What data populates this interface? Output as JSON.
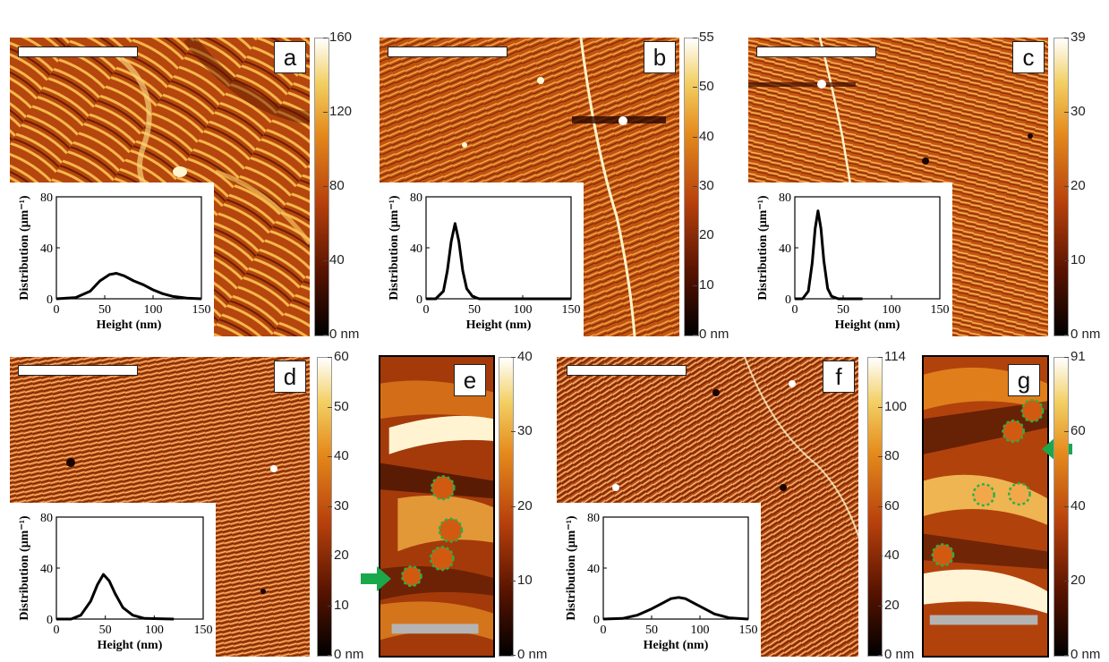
{
  "colors": {
    "dark": "#1a0700",
    "mid": "#b2410b",
    "light": "#ffffff",
    "orange": "#d96a12",
    "yellow": "#f0c24a",
    "circle": "#22b34a",
    "arrow": "#1aa84a"
  },
  "panels": [
    {
      "label": "a",
      "colorbar": [
        "160",
        "120",
        "80",
        "40",
        "0 nm"
      ]
    },
    {
      "label": "b",
      "colorbar": [
        "55",
        "50",
        "40",
        "30",
        "20",
        "10",
        "0 nm"
      ]
    },
    {
      "label": "c",
      "colorbar": [
        "39",
        "30",
        "20",
        "10",
        "0 nm"
      ]
    },
    {
      "label": "d",
      "colorbar": [
        "60",
        "50",
        "40",
        "30",
        "20",
        "10",
        "0 nm"
      ]
    },
    {
      "label": "e",
      "colorbar": [
        "40",
        "30",
        "20",
        "10",
        "0 nm"
      ]
    },
    {
      "label": "f",
      "colorbar": [
        "114",
        "100",
        "80",
        "60",
        "40",
        "20",
        "0 nm"
      ]
    },
    {
      "label": "g",
      "colorbar": [
        "91",
        "60",
        "40",
        "20",
        "0 nm"
      ]
    }
  ],
  "chart_data": [
    {
      "type": "line",
      "panel": "a",
      "xlabel": "Height (nm)",
      "ylabel": "Distribution (μm⁻¹)",
      "xlim": [
        0,
        150
      ],
      "ylim": [
        0,
        80
      ],
      "xticks": [
        "0",
        "50",
        "100",
        "150"
      ],
      "yticks": [
        "0",
        "40",
        "80"
      ],
      "x": [
        0,
        20,
        35,
        45,
        55,
        62,
        70,
        80,
        90,
        100,
        110,
        120,
        135,
        150
      ],
      "y": [
        0,
        1,
        6,
        14,
        19,
        20,
        18,
        14,
        11,
        7,
        4,
        2,
        0.5,
        0
      ]
    },
    {
      "type": "line",
      "panel": "b",
      "xlabel": "Height (nm)",
      "ylabel": "Distribution (μm⁻¹)",
      "xlim": [
        0,
        150
      ],
      "ylim": [
        0,
        80
      ],
      "xticks": [
        "0",
        "50",
        "100",
        "150"
      ],
      "yticks": [
        "0",
        "40",
        "80"
      ],
      "x": [
        0,
        10,
        18,
        22,
        26,
        30,
        34,
        38,
        42,
        48,
        55,
        70,
        150
      ],
      "y": [
        0,
        0,
        6,
        22,
        45,
        59,
        45,
        22,
        8,
        2,
        0,
        0,
        0
      ]
    },
    {
      "type": "line",
      "panel": "c",
      "xlabel": "Height (nm)",
      "ylabel": "Distribution (μm⁻¹)",
      "xlim": [
        0,
        150
      ],
      "ylim": [
        0,
        80
      ],
      "xticks": [
        "0",
        "50",
        "100",
        "150"
      ],
      "yticks": [
        "0",
        "40",
        "80"
      ],
      "x": [
        0,
        8,
        14,
        18,
        21,
        24,
        27,
        30,
        34,
        38,
        45,
        70
      ],
      "y": [
        0,
        0,
        6,
        28,
        55,
        69,
        55,
        30,
        8,
        2,
        0,
        0
      ]
    },
    {
      "type": "line",
      "panel": "d",
      "xlabel": "Height (nm)",
      "ylabel": "Distribution (μm⁻¹)",
      "xlim": [
        0,
        150
      ],
      "ylim": [
        0,
        80
      ],
      "xticks": [
        "0",
        "50",
        "100",
        "150"
      ],
      "yticks": [
        "0",
        "40",
        "80"
      ],
      "x": [
        0,
        15,
        25,
        35,
        42,
        48,
        54,
        60,
        68,
        78,
        90,
        120
      ],
      "y": [
        0,
        0,
        3,
        14,
        27,
        35,
        30,
        20,
        9,
        3,
        0.5,
        0
      ]
    },
    {
      "type": "line",
      "panel": "f",
      "xlabel": "Height (nm)",
      "ylabel": "Distribution (μm⁻¹)",
      "xlim": [
        0,
        150
      ],
      "ylim": [
        0,
        80
      ],
      "xticks": [
        "0",
        "50",
        "100",
        "150"
      ],
      "yticks": [
        "0",
        "40",
        "80"
      ],
      "x": [
        0,
        20,
        35,
        50,
        60,
        70,
        78,
        85,
        95,
        105,
        115,
        130,
        150
      ],
      "y": [
        0,
        0.5,
        3,
        8,
        12,
        16,
        17,
        16,
        12,
        8,
        4,
        1,
        0
      ]
    }
  ]
}
